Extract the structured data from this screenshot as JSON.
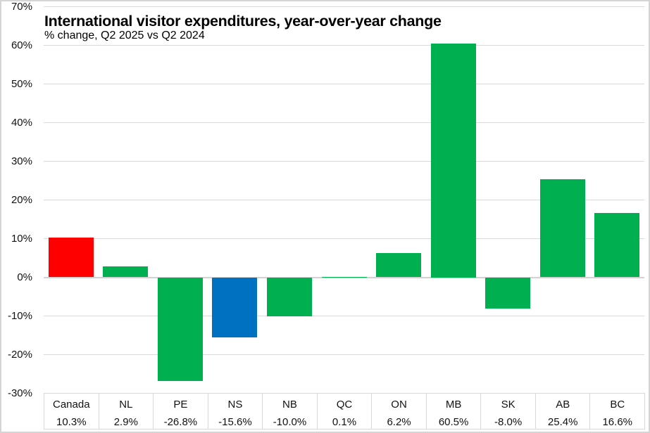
{
  "chart_data": {
    "type": "bar",
    "title": "International visitor expenditures, year-over-year change",
    "subtitle": "% change, Q2 2025 vs Q2 2024",
    "categories": [
      "Canada",
      "NL",
      "PE",
      "NS",
      "NB",
      "QC",
      "ON",
      "MB",
      "SK",
      "AB",
      "BC"
    ],
    "values": [
      10.3,
      2.9,
      -26.8,
      -15.6,
      -10.0,
      0.1,
      6.2,
      60.5,
      -8.0,
      25.4,
      16.6
    ],
    "value_labels": [
      "10.3%",
      "2.9%",
      "-26.8%",
      "-15.6%",
      "-10.0%",
      "0.1%",
      "6.2%",
      "60.5%",
      "-8.0%",
      "25.4%",
      "16.6%"
    ],
    "bar_colors": [
      "#ff0000",
      "#00b050",
      "#00b050",
      "#0070c0",
      "#00b050",
      "#00b050",
      "#00b050",
      "#00b050",
      "#00b050",
      "#00b050",
      "#00b050"
    ],
    "ylim": [
      -30,
      70
    ],
    "yticks": [
      70,
      60,
      50,
      40,
      30,
      20,
      10,
      0,
      -10,
      -20,
      -30
    ],
    "ytick_labels": [
      "70%",
      "60%",
      "50%",
      "40%",
      "30%",
      "20%",
      "10%",
      "0%",
      "-10%",
      "-20%",
      "-30%"
    ],
    "xlabel": "",
    "ylabel": "",
    "grid": "horizontal",
    "legend": "none",
    "colors": {
      "default_bar": "#00b050",
      "canada_bar": "#ff0000",
      "nova_scotia_bar": "#0070c0",
      "gridline": "#d9d9d9",
      "zero_line": "#d2d2d2",
      "frame": "#d5d5d5",
      "text": "#000000"
    }
  }
}
